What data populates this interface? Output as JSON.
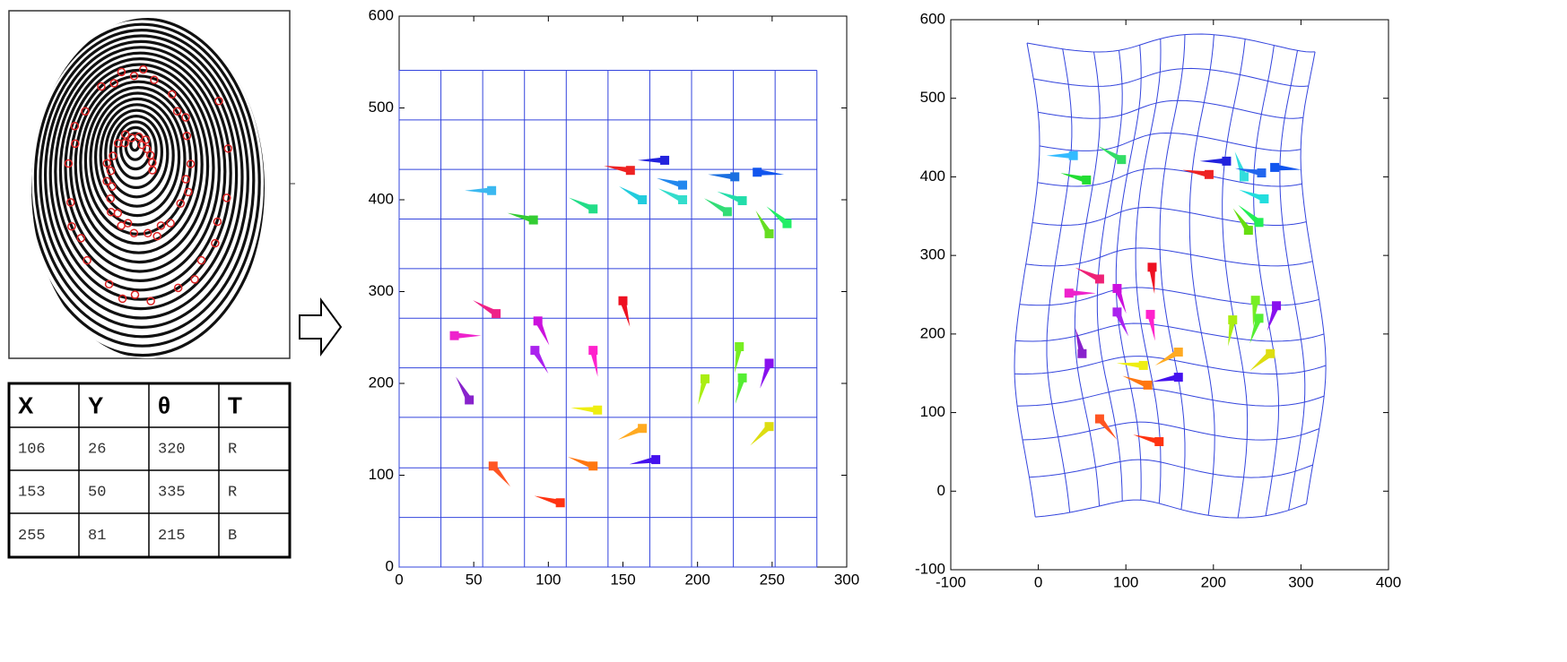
{
  "table": {
    "headers": [
      "X",
      "Y",
      "θ",
      "T"
    ],
    "rows": [
      [
        "106",
        "26",
        "320",
        "R"
      ],
      [
        "153",
        "50",
        "335",
        "R"
      ],
      [
        "255",
        "81",
        "215",
        "B"
      ]
    ]
  },
  "chart_data": [
    {
      "type": "quiver",
      "xlim": [
        0,
        300
      ],
      "ylim": [
        0,
        600
      ],
      "xticks": [
        0,
        50,
        100,
        150,
        200,
        250,
        300
      ],
      "yticks": [
        0,
        100,
        200,
        300,
        400,
        500,
        600
      ],
      "mesh_x": [
        0,
        28,
        56,
        84,
        112,
        140,
        168,
        196,
        224,
        252,
        280
      ],
      "mesh_y": [
        0,
        54,
        108,
        163,
        217,
        271,
        325,
        379,
        433,
        487,
        541
      ],
      "x": [
        62,
        90,
        130,
        155,
        178,
        163,
        190,
        190,
        220,
        225,
        230,
        240,
        248,
        260,
        65,
        37,
        47,
        93,
        91,
        150,
        130,
        133,
        163,
        130,
        63,
        108,
        172,
        205,
        228,
        230,
        248,
        248
      ],
      "y": [
        410,
        378,
        390,
        432,
        443,
        400,
        416,
        400,
        387,
        425,
        399,
        430,
        363,
        374,
        276,
        252,
        182,
        268,
        236,
        290,
        236,
        171,
        151,
        110,
        110,
        70,
        117,
        205,
        240,
        206,
        222,
        153
      ],
      "angle": [
        180,
        165,
        155,
        170,
        180,
        150,
        165,
        155,
        150,
        175,
        160,
        -5,
        120,
        140,
        150,
        0,
        120,
        -65,
        -60,
        -75,
        -80,
        175,
        205,
        160,
        -50,
        165,
        190,
        255,
        260,
        255,
        250,
        225
      ],
      "colors": [
        "#3bb8f0",
        "#33cc33",
        "#22dd88",
        "#ee2222",
        "#2222dd",
        "#22ccdd",
        "#2288ee",
        "#33ddcc",
        "#33dd77",
        "#1a6fe0",
        "#22ddaa",
        "#1155ee",
        "#66dd22",
        "#22ee66",
        "#ee2288",
        "#ee22cc",
        "#8822cc",
        "#cc11dd",
        "#aa22ee",
        "#ee1122",
        "#ff22cc",
        "#eeee11",
        "#ffaa22",
        "#ff7711",
        "#ff5522",
        "#ff3311",
        "#4411ee",
        "#aaee11",
        "#77ee22",
        "#55ee33",
        "#8811ee",
        "#dddd11"
      ]
    },
    {
      "type": "quiver",
      "xlim": [
        -100,
        400
      ],
      "ylim": [
        -100,
        600
      ],
      "xticks": [
        -100,
        0,
        100,
        200,
        300,
        400
      ],
      "yticks": [
        -100,
        0,
        100,
        200,
        300,
        400,
        500,
        600
      ],
      "x": [
        40,
        95,
        55,
        215,
        195,
        235,
        255,
        270,
        258,
        252,
        240,
        70,
        35,
        50,
        90,
        90,
        130,
        128,
        120,
        160,
        125,
        160,
        70,
        138,
        222,
        248,
        252,
        272,
        265
      ],
      "y": [
        427,
        422,
        396,
        420,
        403,
        400,
        405,
        412,
        372,
        342,
        332,
        270,
        252,
        175,
        258,
        228,
        285,
        225,
        160,
        177,
        135,
        145,
        92,
        63,
        218,
        243,
        220,
        236,
        175
      ],
      "angle": [
        180,
        150,
        165,
        180,
        170,
        110,
        170,
        -5,
        160,
        140,
        125,
        155,
        0,
        105,
        -70,
        -65,
        -85,
        -80,
        175,
        210,
        160,
        190,
        -50,
        165,
        260,
        265,
        250,
        250,
        220
      ],
      "colors": [
        "#33bbff",
        "#33dd66",
        "#22dd33",
        "#2222dd",
        "#ee2222",
        "#33dddd",
        "#2266ee",
        "#1155ee",
        "#22dddd",
        "#22ee55",
        "#66dd11",
        "#ee2277",
        "#ee22cc",
        "#8822cc",
        "#cc11dd",
        "#aa22ee",
        "#ee1122",
        "#ff22cc",
        "#eeee11",
        "#ffaa22",
        "#ff7711",
        "#4411ee",
        "#ff5522",
        "#ff3311",
        "#aaee11",
        "#77ee22",
        "#55ee33",
        "#8811ee",
        "#dddd11"
      ]
    }
  ]
}
